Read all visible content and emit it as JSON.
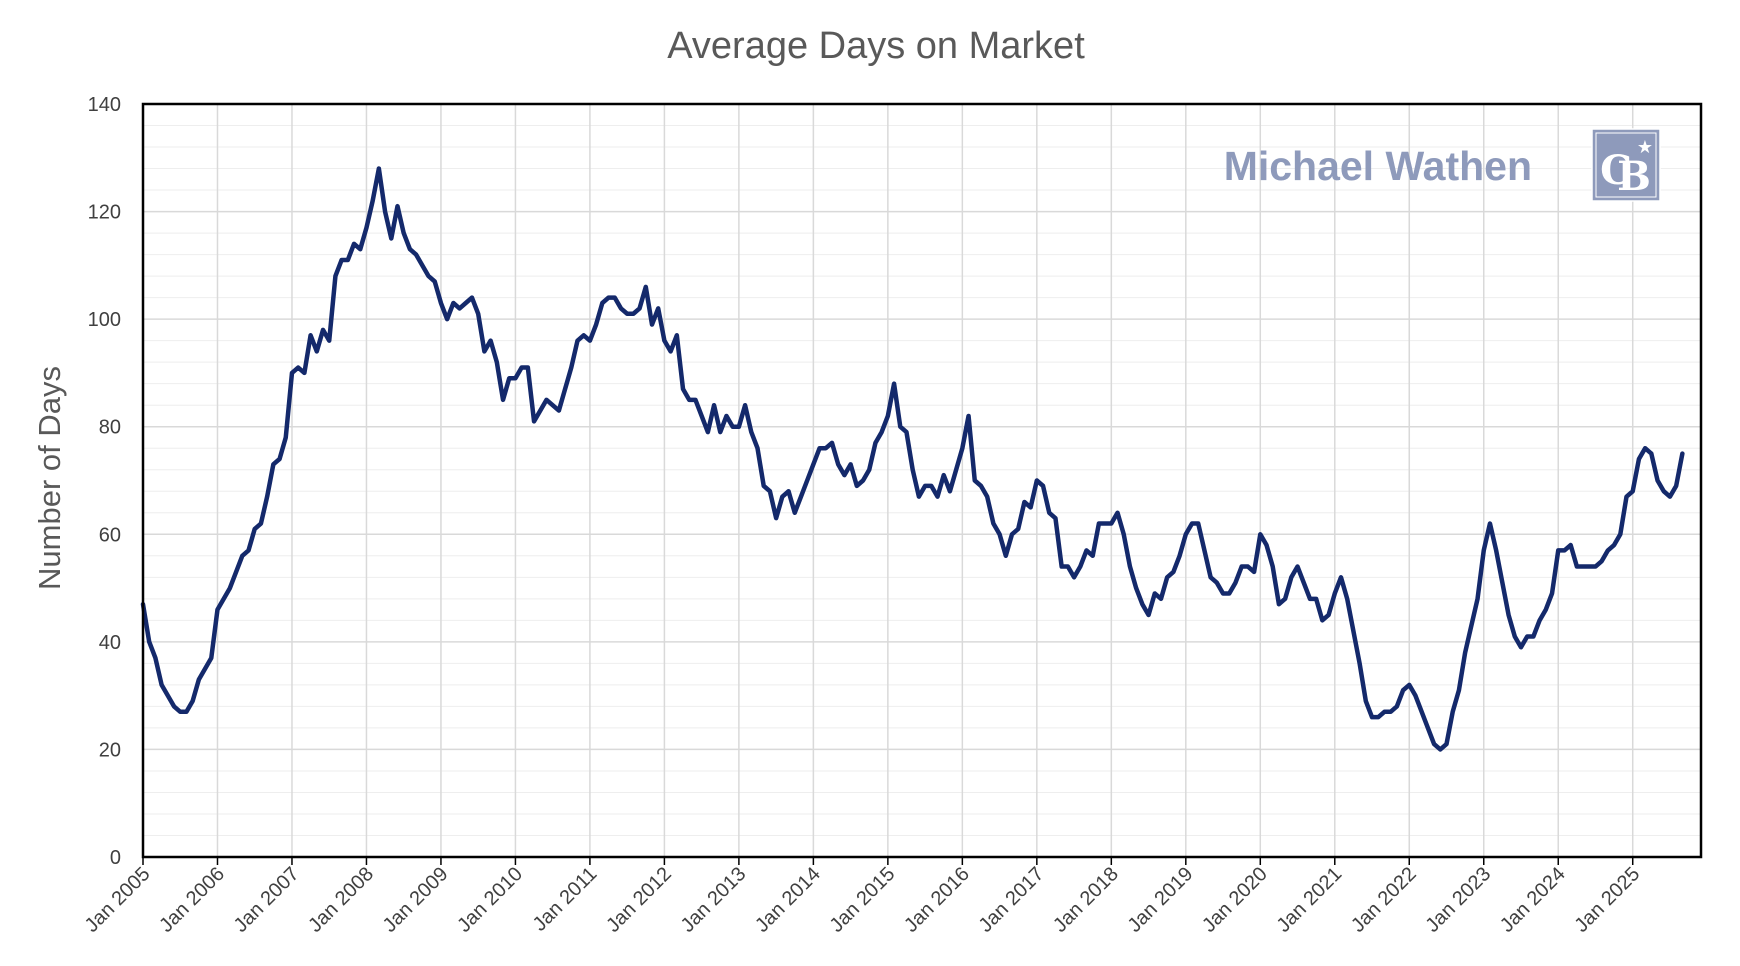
{
  "colors": {
    "line": "#14296b",
    "grid_major": "#d9d9d9",
    "grid_minor": "#eeeeee",
    "frame": "#000000",
    "brand_text": "#8e9abb",
    "logo_bg": "#8e9abb"
  },
  "branding": {
    "name": "Michael Wathen",
    "logo_icon": "coldwell-banker-cb-logo-icon"
  },
  "chart_data": {
    "type": "line",
    "title": "Average Days on Market",
    "xlabel": "",
    "ylabel": "Number of Days",
    "ylim": [
      0,
      140
    ],
    "yticks": [
      0,
      20,
      40,
      60,
      80,
      100,
      120,
      140
    ],
    "y_minor_step": 4,
    "grid": true,
    "legend": "none",
    "x_start": "Jan 2005",
    "x_frequency": "monthly",
    "xlim_months": [
      0,
      251
    ],
    "xtick_labels": [
      "Jan 2005",
      "Jan 2006",
      "Jan 2007",
      "Jan 2008",
      "Jan 2009",
      "Jan 2010",
      "Jan 2011",
      "Jan 2012",
      "Jan 2013",
      "Jan 2014",
      "Jan 2015",
      "Jan 2016",
      "Jan 2017",
      "Jan 2018",
      "Jan 2019",
      "Jan 2020",
      "Jan 2021",
      "Jan 2022",
      "Jan 2023",
      "Jan 2024",
      "Jan 2025"
    ],
    "series": [
      {
        "values": [
          47,
          40,
          37,
          32,
          30,
          28,
          27,
          27,
          29,
          33,
          35,
          37,
          46,
          48,
          50,
          53,
          56,
          57,
          61,
          62,
          67,
          73,
          74,
          78,
          90,
          91,
          90,
          97,
          94,
          98,
          96,
          108,
          111,
          111,
          114,
          113,
          117,
          122,
          128,
          120,
          115,
          121,
          116,
          113,
          112,
          110,
          108,
          107,
          103,
          100,
          103,
          102,
          103,
          104,
          101,
          94,
          96,
          92,
          85,
          89,
          89,
          91,
          91,
          81,
          83,
          85,
          84,
          83,
          87,
          91,
          96,
          97,
          96,
          99,
          103,
          104,
          104,
          102,
          101,
          101,
          102,
          106,
          99,
          102,
          96,
          94,
          97,
          87,
          85,
          85,
          82,
          79,
          84,
          79,
          82,
          80,
          80,
          84,
          79,
          76,
          69,
          68,
          63,
          67,
          68,
          64,
          67,
          70,
          73,
          76,
          76,
          77,
          73,
          71,
          73,
          69,
          70,
          72,
          77,
          79,
          82,
          88,
          80,
          79,
          72,
          67,
          69,
          69,
          67,
          71,
          68,
          72,
          76,
          82,
          70,
          69,
          67,
          62,
          60,
          56,
          60,
          61,
          66,
          65,
          70,
          69,
          64,
          63,
          54,
          54,
          52,
          54,
          57,
          56,
          62,
          62,
          62,
          64,
          60,
          54,
          50,
          47,
          45,
          49,
          48,
          52,
          53,
          56,
          60,
          62,
          62,
          57,
          52,
          51,
          49,
          49,
          51,
          54,
          54,
          53,
          60,
          58,
          54,
          47,
          48,
          52,
          54,
          51,
          48,
          48,
          44,
          45,
          49,
          52,
          48,
          42,
          36,
          29,
          26,
          26,
          27,
          27,
          28,
          31,
          32,
          30,
          27,
          24,
          21,
          20,
          21,
          27,
          31,
          38,
          43,
          48,
          57,
          62,
          57,
          51,
          45,
          41,
          39,
          41,
          41,
          44,
          46,
          49,
          57,
          57,
          58,
          54,
          54,
          54,
          54,
          55,
          57,
          58,
          60,
          67,
          68,
          74,
          76,
          75,
          70,
          68,
          67,
          69,
          75
        ]
      }
    ]
  }
}
